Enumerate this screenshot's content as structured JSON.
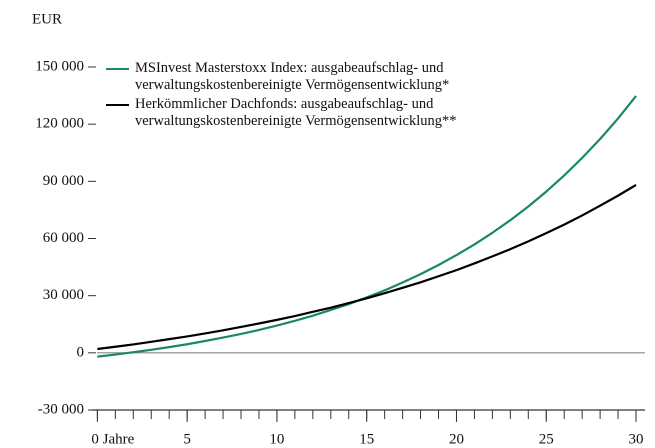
{
  "chart_data": {
    "type": "line",
    "y_unit": "EUR",
    "x": [
      0,
      1,
      2,
      3,
      4,
      5,
      6,
      7,
      8,
      9,
      10,
      11,
      12,
      13,
      14,
      15,
      16,
      17,
      18,
      19,
      20,
      21,
      22,
      23,
      24,
      25,
      26,
      27,
      28,
      29,
      30
    ],
    "series": [
      {
        "name": "MSInvest Masterstoxx Index: ausgabeaufschlag- und\nverwaltungskostenbereinigte Vermögensentwicklung*",
        "color": "#1a8a5a",
        "values": [
          -2000,
          -900,
          300,
          1600,
          3000,
          4500,
          6200,
          8000,
          9900,
          12000,
          14300,
          16800,
          19500,
          22500,
          25600,
          29100,
          32800,
          36900,
          41300,
          46100,
          51300,
          56900,
          63000,
          69600,
          76800,
          84600,
          93100,
          102300,
          112200,
          123000,
          134800
        ]
      },
      {
        "name": "Herkömmlicher Dachfonds: ausgabeaufschlag- und\nverwaltungskostenbereinigte Vermögensentwicklung**",
        "color": "#000000",
        "values": [
          2000,
          3200,
          4400,
          5800,
          7200,
          8600,
          10200,
          11800,
          13600,
          15400,
          17300,
          19300,
          21500,
          23700,
          26100,
          28600,
          31300,
          34100,
          37000,
          40200,
          43400,
          46900,
          50600,
          54400,
          58500,
          62800,
          67300,
          72100,
          77200,
          82500,
          88100
        ]
      }
    ],
    "xlim": [
      -0.3,
      30.5
    ],
    "xticks": [
      {
        "value": 0,
        "label": "0 Jahre"
      },
      5,
      10,
      15,
      20,
      25,
      30
    ],
    "ylim": [
      -30000,
      150000
    ],
    "yticks": [
      {
        "value": -30000,
        "label": "-30 000"
      },
      0,
      {
        "value": 30000,
        "label": "30 000"
      },
      {
        "value": 60000,
        "label": "60 000"
      },
      {
        "value": 90000,
        "label": "90 000"
      },
      {
        "value": 120000,
        "label": "120 000"
      },
      {
        "value": 150000,
        "label": "150 000"
      }
    ],
    "zero_line": true,
    "legend": "top-left"
  }
}
